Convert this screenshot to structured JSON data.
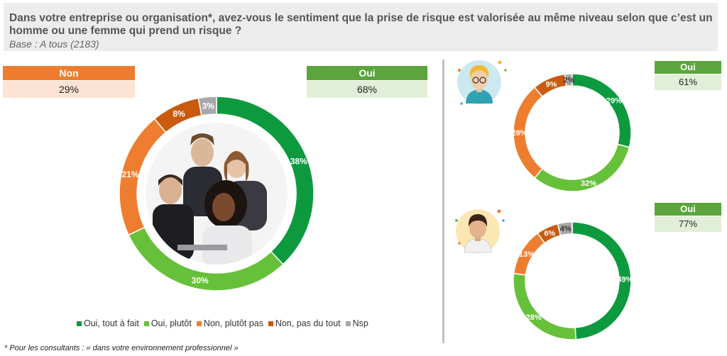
{
  "header": {
    "question": "Dans votre entreprise ou organisation*, avez-vous le sentiment que la prise de risque est valorisée au même niveau selon que c’est un homme ou une femme qui prend un risque ?",
    "base": "Base : A tous (2183)"
  },
  "summary": {
    "non_label": "Non",
    "non_value": "29%",
    "oui_label": "Oui",
    "oui_value": "68%"
  },
  "women": {
    "oui_label": "Oui",
    "oui_value": "61%"
  },
  "men": {
    "oui_label": "Oui",
    "oui_value": "77%"
  },
  "colors": {
    "oui_tout_a_fait": "#0d9a3e",
    "oui_plutot": "#67c03a",
    "non_plutot_pas": "#ee7d2f",
    "non_pas_du_tout": "#c95a0e",
    "nsp": "#a8a8a8",
    "tag_green": "#5ba53c",
    "tag_orange": "#ee7d2f",
    "tag_green_bg": "#e2efd8",
    "tag_orange_bg": "#fce3d3"
  },
  "chart_data": [
    {
      "type": "pie",
      "variant": "donut",
      "categories": [
        "Oui, tout à fait",
        "Oui, plutôt",
        "Non, plutôt pas",
        "Non, pas du tout",
        "Nsp"
      ],
      "values": [
        38,
        30,
        21,
        8,
        3
      ],
      "labels": [
        "38%",
        "30%",
        "21%",
        "8%",
        "3%"
      ],
      "legend_position": "bottom"
    },
    {
      "type": "pie",
      "variant": "donut",
      "categories": [
        "Oui, tout à fait",
        "Oui, plutôt",
        "Non, plutôt pas",
        "Non, pas du tout",
        "Nsp"
      ],
      "values": [
        29,
        32,
        28,
        9,
        2
      ],
      "labels": [
        "29%",
        "32%",
        "28%",
        "9%",
        "2%"
      ],
      "icon": "woman-avatar-icon"
    },
    {
      "type": "pie",
      "variant": "donut",
      "categories": [
        "Oui, tout à fait",
        "Oui, plutôt",
        "Non, plutôt pas",
        "Non, pas du tout",
        "Nsp"
      ],
      "values": [
        49,
        28,
        13,
        6,
        4
      ],
      "labels": [
        "49%",
        "28%",
        "13%",
        "6%",
        "4%"
      ],
      "icon": "man-avatar-icon"
    }
  ],
  "legend": {
    "items": [
      "Oui, tout à fait",
      "Oui, plutôt",
      "Non, plutôt pas",
      "Non, pas du tout",
      "Nsp"
    ]
  },
  "footnote": "* Pour les consultants : « dans votre environnement professionnel »"
}
